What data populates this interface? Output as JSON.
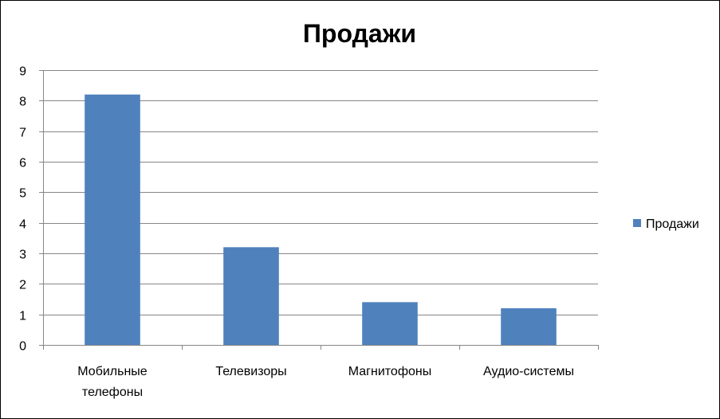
{
  "chart_data": {
    "type": "bar",
    "title": "Продажи",
    "categories": [
      [
        "Мобильные",
        "телефоны"
      ],
      [
        "Телевизоры"
      ],
      [
        "Магнитофоны"
      ],
      [
        "Аудио-системы"
      ]
    ],
    "series": [
      {
        "name": "Продажи",
        "values": [
          8.2,
          3.2,
          1.4,
          1.2
        ],
        "color": "#4F81BD"
      }
    ],
    "ylim": [
      0,
      9
    ],
    "yticks": [
      0,
      1,
      2,
      3,
      4,
      5,
      6,
      7,
      8,
      9
    ],
    "grid": true,
    "legend_position": "right"
  }
}
